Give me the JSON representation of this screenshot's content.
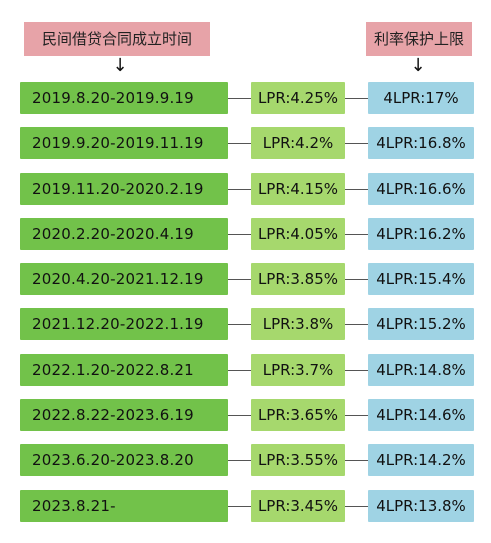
{
  "headers": {
    "left": "民间借贷合同成立时间",
    "right": "利率保护上限",
    "arrow": "↓"
  },
  "rows": [
    {
      "period": "2019.8.20-2019.9.19",
      "lpr": "LPR:4.25%",
      "cap": "4LPR:17%"
    },
    {
      "period": "2019.9.20-2019.11.19",
      "lpr": "LPR:4.2%",
      "cap": "4LPR:16.8%"
    },
    {
      "period": "2019.11.20-2020.2.19",
      "lpr": "LPR:4.15%",
      "cap": "4LPR:16.6%"
    },
    {
      "period": "2020.2.20-2020.4.19",
      "lpr": "LPR:4.05%",
      "cap": "4LPR:16.2%"
    },
    {
      "period": "2020.4.20-2021.12.19",
      "lpr": "LPR:3.85%",
      "cap": "4LPR:15.4%"
    },
    {
      "period": "2021.12.20-2022.1.19",
      "lpr": "LPR:3.8%",
      "cap": "4LPR:15.2%"
    },
    {
      "period": "2022.1.20-2022.8.21",
      "lpr": "LPR:3.7%",
      "cap": "4LPR:14.8%"
    },
    {
      "period": "2022.8.22-2023.6.19",
      "lpr": "LPR:3.65%",
      "cap": "4LPR:14.6%"
    },
    {
      "period": "2023.6.20-2023.8.20",
      "lpr": "LPR:3.55%",
      "cap": "4LPR:14.2%"
    },
    {
      "period": "2023.8.21-",
      "lpr": "LPR:3.45%",
      "cap": "4LPR:13.8%"
    }
  ],
  "colors": {
    "header_bg": "#e7a3a8",
    "period_bg": "#72c24a",
    "lpr_bg": "#a6d86d",
    "cap_bg": "#9fd3e4"
  }
}
